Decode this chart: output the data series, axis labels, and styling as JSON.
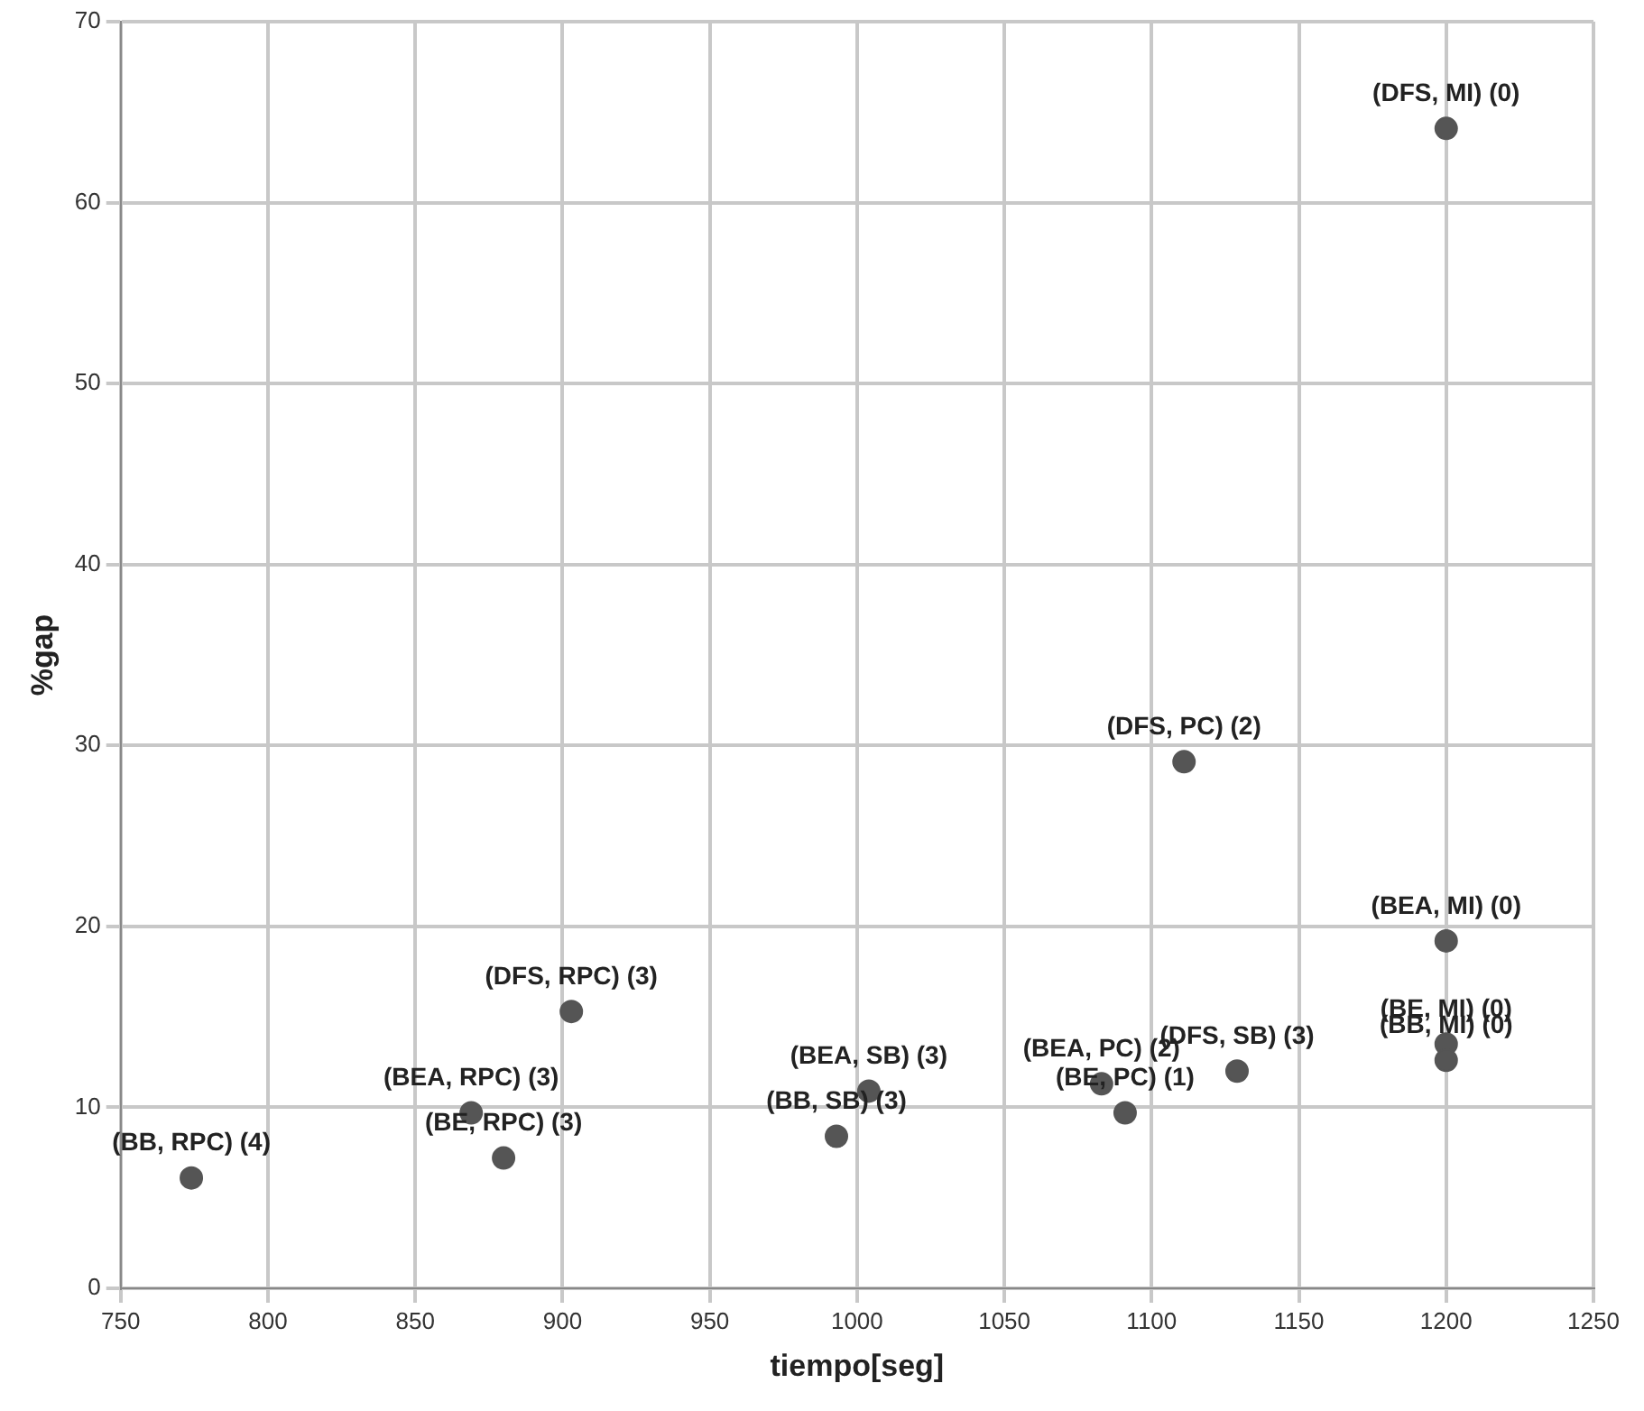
{
  "chart_data": {
    "type": "scatter",
    "xlabel": "tiempo[seg]",
    "ylabel": "%gap",
    "x": [
      774,
      869,
      880,
      903,
      993,
      1004,
      1083,
      1091,
      1129,
      1111,
      1200,
      1200,
      1200,
      1200
    ],
    "series": [
      {
        "color": "#555555",
        "values": [
          6.1,
          9.7,
          7.2,
          15.3,
          8.4,
          10.9,
          11.3,
          9.7,
          12.0,
          29.1,
          19.2,
          13.5,
          12.6,
          64.1
        ]
      }
    ],
    "annotations": [
      {
        "text": "(BB, RPC) (4)",
        "x": 774,
        "y": 6.1
      },
      {
        "text": "(BEA, RPC) (3)",
        "x": 869,
        "y": 9.7
      },
      {
        "text": "(BE, RPC) (3)",
        "x": 880,
        "y": 7.2
      },
      {
        "text": "(DFS, RPC) (3)",
        "x": 903,
        "y": 15.3
      },
      {
        "text": "(BB, SB) (3)",
        "x": 993,
        "y": 8.4
      },
      {
        "text": "(BEA, SB) (3)",
        "x": 1004,
        "y": 10.9
      },
      {
        "text": "(BEA, PC) (2)",
        "x": 1083,
        "y": 11.3
      },
      {
        "text": "(BE, PC) (1)",
        "x": 1091,
        "y": 9.7
      },
      {
        "text": "(DFS, SB) (3)",
        "x": 1129,
        "y": 12.0
      },
      {
        "text": "(DFS, PC) (2)",
        "x": 1111,
        "y": 29.1
      },
      {
        "text": "(BEA, MI) (0)",
        "x": 1200,
        "y": 19.2
      },
      {
        "text": "(BE, MI) (0)",
        "x": 1200,
        "y": 13.5
      },
      {
        "text": "(BB, MI) (0)",
        "x": 1200,
        "y": 12.6
      },
      {
        "text": "(DFS, MI) (0)",
        "x": 1200,
        "y": 64.1
      }
    ],
    "xlim": [
      750,
      1250
    ],
    "xticks": [
      750,
      800,
      850,
      900,
      950,
      1000,
      1050,
      1100,
      1150,
      1200,
      1250
    ],
    "ylim": [
      0,
      70
    ],
    "yticks": [
      0,
      10,
      20,
      30,
      40,
      50,
      60,
      70
    ],
    "grid": true,
    "marker": "circle"
  }
}
